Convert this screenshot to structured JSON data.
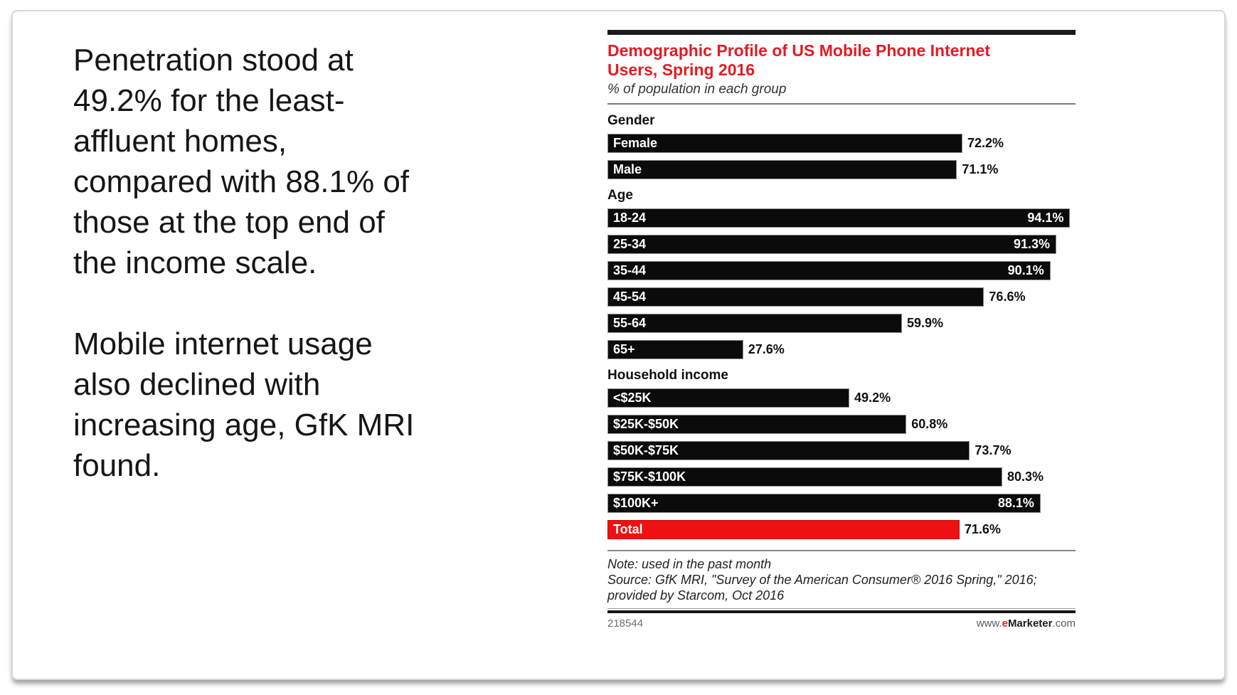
{
  "left_panel": {
    "paragraphs": [
      [
        "Penetration stood at",
        "49.2% for the least-",
        "affluent homes,",
        "compared with 88.1% of",
        "those at the top end of",
        "the income scale."
      ],
      [
        "Mobile internet usage",
        "also declined with",
        "increasing age, GfK MRI",
        "found."
      ]
    ]
  },
  "chart": {
    "title_lines": [
      "Demographic Profile of US Mobile Phone Internet",
      "Users, Spring 2016"
    ],
    "subtitle": "% of population in each group",
    "note_line": "Note: used in the past month",
    "source_lines": [
      "Source: GfK MRI, \"Survey of the American Consumer® 2016 Spring,\" 2016;",
      "provided by Starcom, Oct 2016"
    ],
    "footer_id": "218544",
    "website": {
      "prefix": "www.",
      "e": "e",
      "brand": "Marketer",
      "suffix": ".com"
    },
    "colors": {
      "title_red": "#e31b23",
      "bar_black": "#0b0b0b",
      "total_red": "#ee1111",
      "inside_label_white": "#ffffff",
      "value_black": "#111111"
    }
  },
  "chart_data": {
    "type": "bar",
    "orientation": "horizontal",
    "title": "Demographic Profile of US Mobile Phone Internet Users, Spring 2016",
    "subtitle": "% of population in each group",
    "value_unit": "%",
    "axis_range": [
      0,
      95.2
    ],
    "inside_label_threshold": 85,
    "groups": [
      {
        "header": "Gender",
        "rows": [
          {
            "label": "Female",
            "value": 72.2
          },
          {
            "label": "Male",
            "value": 71.1
          }
        ]
      },
      {
        "header": "Age",
        "rows": [
          {
            "label": "18-24",
            "value": 94.1
          },
          {
            "label": "25-34",
            "value": 91.3
          },
          {
            "label": "35-44",
            "value": 90.1
          },
          {
            "label": "45-54",
            "value": 76.6
          },
          {
            "label": "55-64",
            "value": 59.9
          },
          {
            "label": "65+",
            "value": 27.6
          }
        ]
      },
      {
        "header": "Household income",
        "rows": [
          {
            "label": "<$25K",
            "value": 49.2
          },
          {
            "label": "$25K-$50K",
            "value": 60.8
          },
          {
            "label": "$50K-$75K",
            "value": 73.7
          },
          {
            "label": "$75K-$100K",
            "value": 80.3
          },
          {
            "label": "$100K+",
            "value": 88.1
          }
        ]
      }
    ],
    "total_row": {
      "label": "Total",
      "value": 71.6,
      "is_total": true
    },
    "note": "Note: used in the past month",
    "source": "Source: GfK MRI, \"Survey of the American Consumer® 2016 Spring,\" 2016; provided by Starcom, Oct 2016"
  }
}
